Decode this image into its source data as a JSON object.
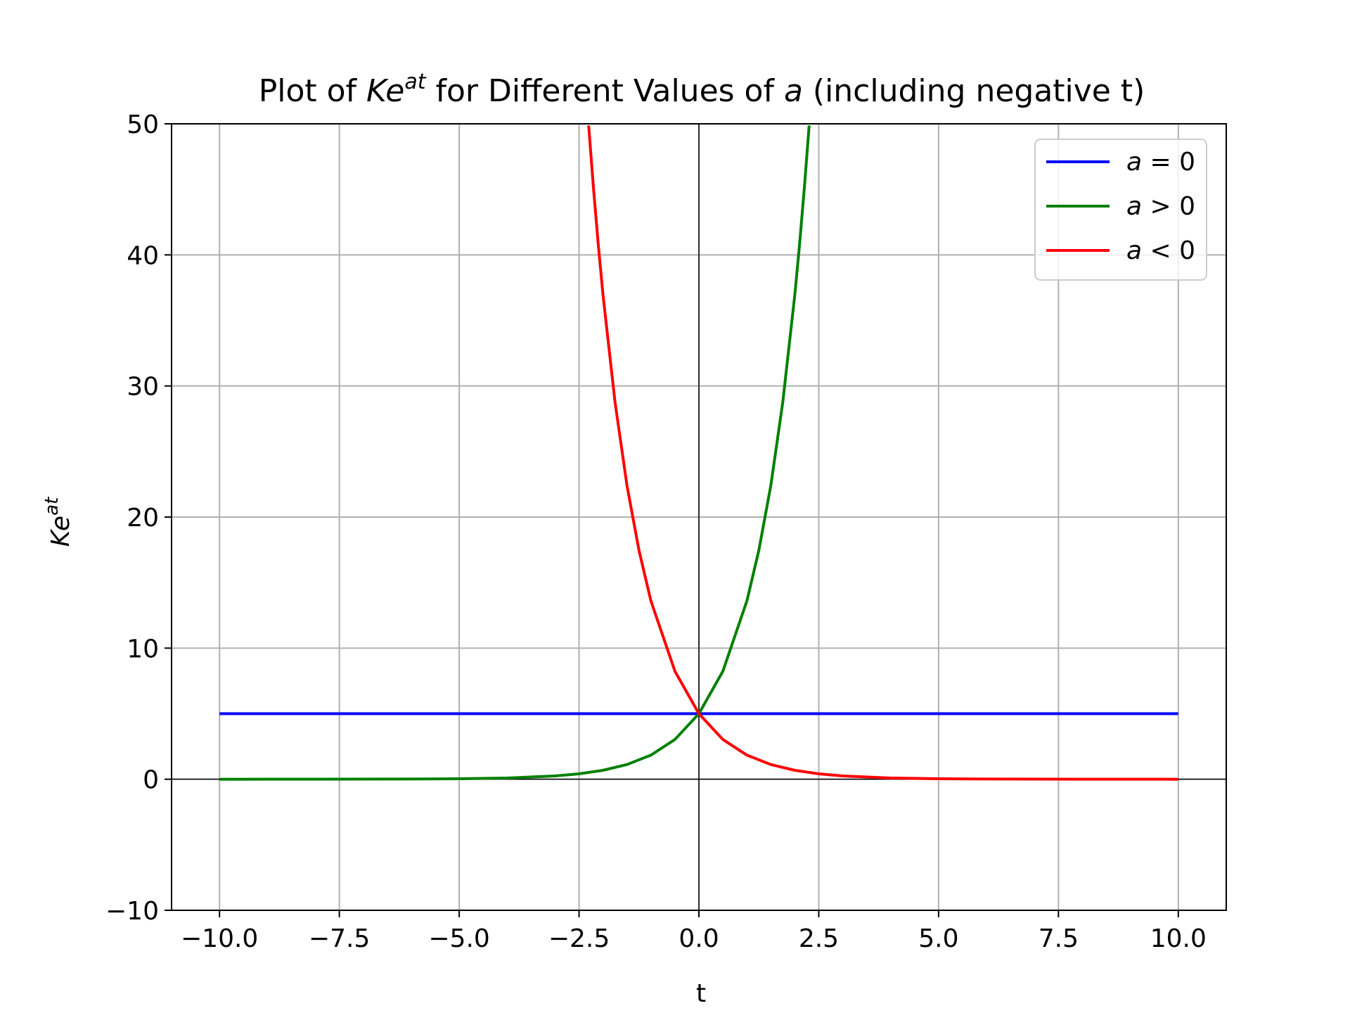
{
  "chart_data": {
    "type": "line",
    "title": {
      "pre": "Plot of ",
      "k": "K",
      "e": "e",
      "sup": "at",
      "mid": " for Different Values of ",
      "a": "a",
      "post": " (including negative t)"
    },
    "xlabel": "t",
    "ylabel": {
      "k": "K",
      "e": "e",
      "sup": "at"
    },
    "xlim": [
      -11,
      11
    ],
    "ylim": [
      -10,
      50
    ],
    "xticks": [
      -10,
      -7.5,
      -5,
      -2.5,
      0,
      2.5,
      5,
      7.5,
      10
    ],
    "xtick_labels": [
      "−10.0",
      "−7.5",
      "−5.0",
      "−2.5",
      "0.0",
      "2.5",
      "5.0",
      "7.5",
      "10.0"
    ],
    "yticks": [
      -10,
      0,
      10,
      20,
      30,
      40,
      50
    ],
    "ytick_labels": [
      "−10",
      "0",
      "10",
      "20",
      "30",
      "40",
      "50"
    ],
    "grid": true,
    "reference_lines": {
      "x": 0,
      "y": 0
    },
    "legend_position": "top-right",
    "series": [
      {
        "name": "a = 0",
        "legend": {
          "var": "a",
          "op": "=",
          "val": "0"
        },
        "color": "#0000ff",
        "x": [
          -10,
          -7.5,
          -5,
          -2.5,
          0,
          2.5,
          5,
          7.5,
          10
        ],
        "y": [
          5,
          5,
          5,
          5,
          5,
          5,
          5,
          5,
          5
        ]
      },
      {
        "name": "a > 0",
        "legend": {
          "var": "a",
          "op": ">",
          "val": "0"
        },
        "color": "#008000",
        "x": [
          -10,
          -8,
          -6,
          -5,
          -4,
          -3,
          -2.5,
          -2,
          -1.5,
          -1,
          -0.5,
          0,
          0.5,
          1,
          1.25,
          1.5,
          1.75,
          2,
          2.1,
          2.2,
          2.3
        ],
        "y": [
          0.0002,
          0.0017,
          0.012,
          0.034,
          0.092,
          0.25,
          0.41,
          0.68,
          1.12,
          1.84,
          3.03,
          5,
          8.24,
          13.59,
          17.45,
          22.41,
          28.77,
          36.95,
          40.83,
          45.13,
          49.87
        ]
      },
      {
        "name": "a < 0",
        "legend": {
          "var": "a",
          "op": "<",
          "val": "0"
        },
        "color": "#ff0000",
        "x": [
          -2.3,
          -2.2,
          -2.1,
          -2,
          -1.75,
          -1.5,
          -1.25,
          -1,
          -0.5,
          0,
          0.5,
          1,
          1.5,
          2,
          2.5,
          3,
          4,
          5,
          6,
          8,
          10
        ],
        "y": [
          49.87,
          45.13,
          40.83,
          36.95,
          28.77,
          22.41,
          17.45,
          13.59,
          8.24,
          5,
          3.03,
          1.84,
          1.12,
          0.68,
          0.41,
          0.25,
          0.092,
          0.034,
          0.012,
          0.0017,
          0.0002
        ]
      }
    ]
  }
}
